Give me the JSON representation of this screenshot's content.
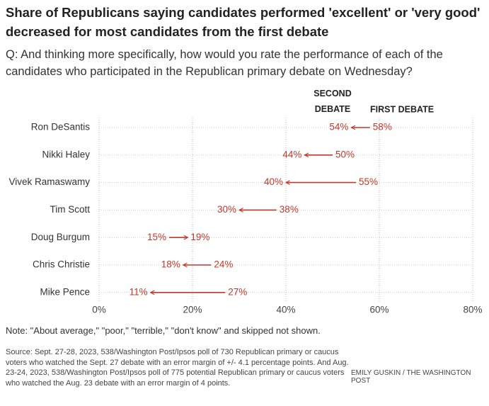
{
  "chart_data": {
    "type": "arrow",
    "title": "Share of Republicans saying candidates performed 'excellent' or 'very good' decreased for most candidates from the first debate",
    "subtitle": "Q: And thinking more specifically, how would you rate the performance of each of the candidates who participated in the Republican primary debate on Wednesday?",
    "categories": [
      "Ron DeSantis",
      "Nikki Haley",
      "Vivek Ramaswamy",
      "Tim Scott",
      "Doug Burgum",
      "Chris Christie",
      "Mike Pence"
    ],
    "series": [
      {
        "name": "SECOND DEBATE",
        "color": "#c0392b",
        "values": [
          54,
          44,
          40,
          30,
          19,
          18,
          11
        ],
        "value_labels": [
          "54%",
          "44%",
          "40%",
          "30%",
          "19%",
          "18%",
          "11%"
        ]
      },
      {
        "name": "FIRST DEBATE",
        "color": "#c0392b",
        "values": [
          58,
          50,
          55,
          38,
          15,
          24,
          27
        ],
        "value_labels": [
          "58%",
          "50%",
          "55%",
          "38%",
          "15%",
          "24%",
          "27%"
        ]
      }
    ],
    "xlim": [
      0,
      80
    ],
    "xticks": [
      {
        "value": 0,
        "label": "0%"
      },
      {
        "value": 20,
        "label": "20%"
      },
      {
        "value": 40,
        "label": "40%"
      },
      {
        "value": 60,
        "label": "60%"
      },
      {
        "value": 80,
        "label": "80%"
      }
    ],
    "grid": true,
    "note": "Note: \"About average,\" \"poor,\" \"terrible,\" \"don't know\" and skipped not shown.",
    "source": "Source: Sept. 27-28, 2023, 538/Washington Post/Ipsos poll of 730 Republican primary or caucus voters who watched the Sept. 27 debate with an error margin of +/- 4.1 percentage points. And Aug. 23-24, 2023, 538/Washington Post/Ipsos poll of 775 potential Republican primary or caucus voters who watched the Aug. 23 debate with an error margin of 4 points.",
    "credit": "Emily Guskin / The Washington Post"
  }
}
